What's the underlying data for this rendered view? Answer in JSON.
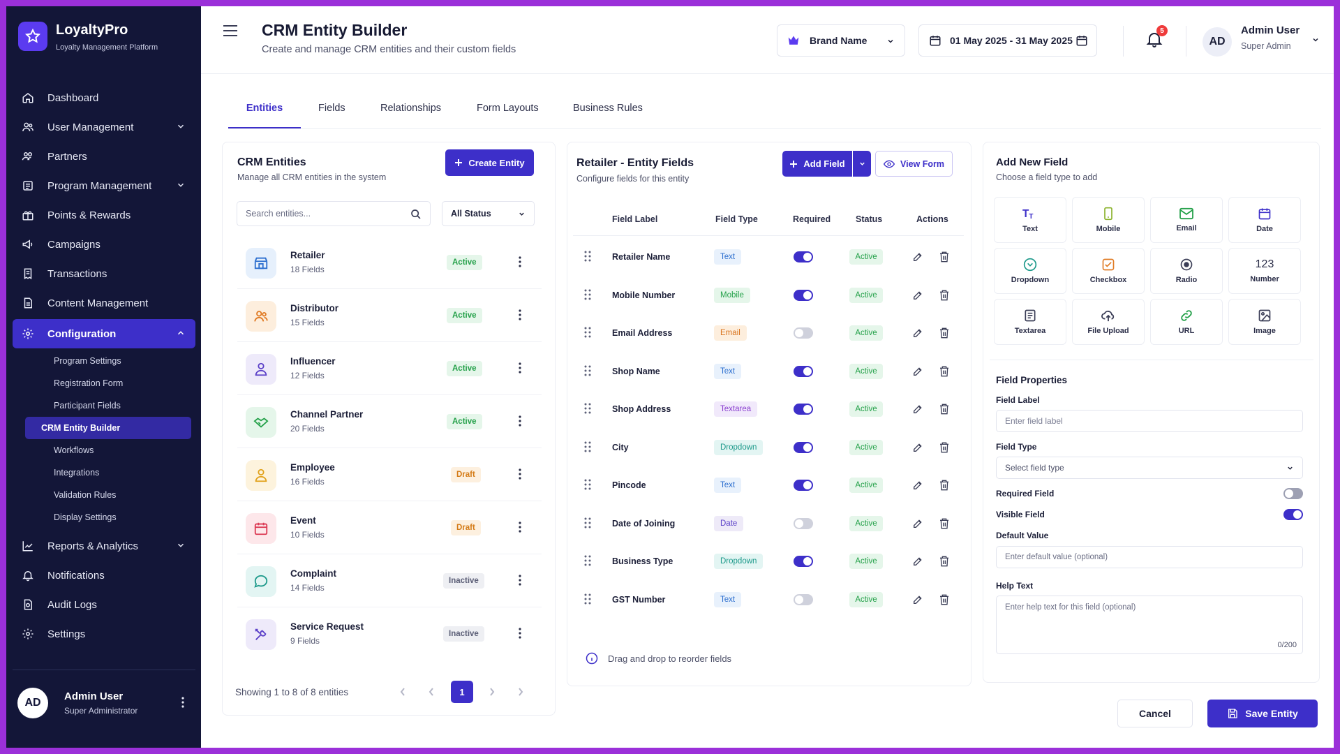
{
  "app": {
    "name": "LoyaltyPro",
    "tagline": "Loyalty Management Platform"
  },
  "sidebar": {
    "items": [
      {
        "label": "Dashboard"
      },
      {
        "label": "User Management"
      },
      {
        "label": "Partners"
      },
      {
        "label": "Program Management"
      },
      {
        "label": "Points & Rewards"
      },
      {
        "label": "Campaigns"
      },
      {
        "label": "Transactions"
      },
      {
        "label": "Content Management"
      },
      {
        "label": "Configuration"
      }
    ],
    "config_sub": [
      {
        "label": "Program Settings"
      },
      {
        "label": "Registration Form"
      },
      {
        "label": "Participant Fields"
      },
      {
        "label": "CRM Entity Builder"
      },
      {
        "label": "Workflows"
      },
      {
        "label": "Integrations"
      },
      {
        "label": "Validation Rules"
      },
      {
        "label": "Display Settings"
      }
    ],
    "items_after": [
      {
        "label": "Reports & Analytics"
      },
      {
        "label": "Notifications"
      },
      {
        "label": "Audit Logs"
      },
      {
        "label": "Settings"
      }
    ],
    "user": {
      "initials": "AD",
      "name": "Admin User",
      "role": "Super Administrator"
    }
  },
  "header": {
    "title": "CRM Entity Builder",
    "subtitle": "Create and manage CRM entities and their custom fields",
    "brand_select": "Brand Name",
    "date_range": "01 May 2025 - 31 May 2025",
    "notifications_count": "5",
    "user": {
      "initials": "AD",
      "name": "Admin User",
      "role": "Super Admin"
    }
  },
  "tabs": [
    "Entities",
    "Fields",
    "Relationships",
    "Form Layouts",
    "Business Rules"
  ],
  "entities_panel": {
    "title": "CRM Entities",
    "subtitle": "Manage all CRM entities in the system",
    "create_label": "Create Entity",
    "search_placeholder": "Search entities...",
    "status_filter": "All Status",
    "entities": [
      {
        "name": "Retailer",
        "fields": "18 Fields",
        "status": "Active"
      },
      {
        "name": "Distributor",
        "fields": "15 Fields",
        "status": "Active"
      },
      {
        "name": "Influencer",
        "fields": "12 Fields",
        "status": "Active"
      },
      {
        "name": "Channel Partner",
        "fields": "20 Fields",
        "status": "Active"
      },
      {
        "name": "Employee",
        "fields": "16 Fields",
        "status": "Draft"
      },
      {
        "name": "Event",
        "fields": "10 Fields",
        "status": "Draft"
      },
      {
        "name": "Complaint",
        "fields": "14 Fields",
        "status": "Inactive"
      },
      {
        "name": "Service Request",
        "fields": "9 Fields",
        "status": "Inactive"
      }
    ],
    "showing": "Showing 1 to 8 of 8 entities",
    "current_page": "1"
  },
  "fields_panel": {
    "title": "Retailer - Entity Fields",
    "subtitle": "Configure fields for this entity",
    "add_label": "Add Field",
    "view_label": "View Form",
    "columns": [
      "Field Label",
      "Field Type",
      "Required",
      "Status",
      "Actions"
    ],
    "fields": [
      {
        "label": "Retailer Name",
        "type": "Text",
        "required": true,
        "status": "Active"
      },
      {
        "label": "Mobile Number",
        "type": "Mobile",
        "required": true,
        "status": "Active"
      },
      {
        "label": "Email Address",
        "type": "Email",
        "required": false,
        "status": "Active"
      },
      {
        "label": "Shop Name",
        "type": "Text",
        "required": true,
        "status": "Active"
      },
      {
        "label": "Shop Address",
        "type": "Textarea",
        "required": true,
        "status": "Active"
      },
      {
        "label": "City",
        "type": "Dropdown",
        "required": true,
        "status": "Active"
      },
      {
        "label": "Pincode",
        "type": "Text",
        "required": true,
        "status": "Active"
      },
      {
        "label": "Date of Joining",
        "type": "Date",
        "required": false,
        "status": "Active"
      },
      {
        "label": "Business Type",
        "type": "Dropdown",
        "required": true,
        "status": "Active"
      },
      {
        "label": "GST Number",
        "type": "Text",
        "required": false,
        "status": "Active"
      }
    ],
    "hint": "Drag and drop to reorder fields"
  },
  "add_field_panel": {
    "title": "Add New Field",
    "subtitle": "Choose a field type to add",
    "types": [
      "Text",
      "Mobile",
      "Email",
      "Date",
      "Dropdown",
      "Checkbox",
      "Radio",
      "Number",
      "Textarea",
      "File Upload",
      "URL",
      "Image"
    ],
    "number_glyph": "123",
    "properties_title": "Field Properties",
    "field_label": "Field Label",
    "field_label_placeholder": "Enter field label",
    "field_type": "Field Type",
    "field_type_placeholder": "Select field type",
    "required_label": "Required Field",
    "required_on": false,
    "visible_label": "Visible Field",
    "visible_on": true,
    "default_label": "Default Value",
    "default_placeholder": "Enter default value (optional)",
    "help_label": "Help Text",
    "help_placeholder": "Enter help text for this field (optional)",
    "help_counter": "0/200"
  },
  "footer": {
    "cancel": "Cancel",
    "save": "Save Entity"
  },
  "colors": {
    "primary": "#3d2fc9",
    "sidebar": "#131638",
    "frame": "#9b30d9"
  }
}
